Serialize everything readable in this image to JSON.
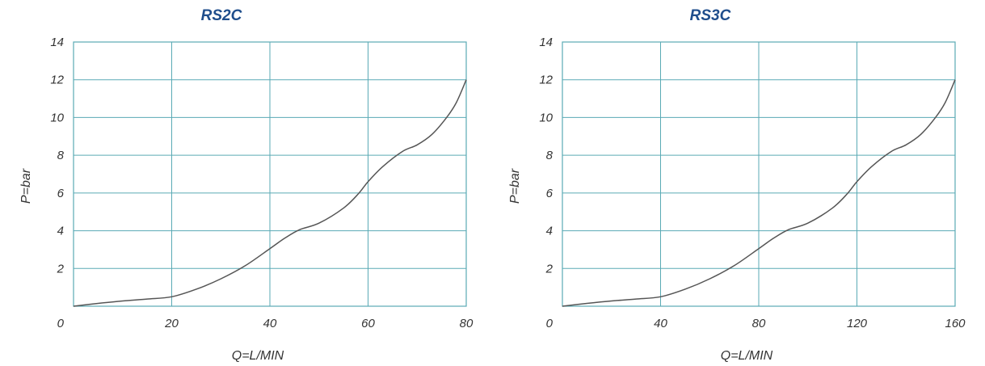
{
  "chart_data": [
    {
      "type": "line",
      "title": "RS2C",
      "xlabel": "Q=L/MIN",
      "ylabel": "P=bar",
      "xlim": [
        0,
        80
      ],
      "ylim": [
        0,
        14
      ],
      "xticks": [
        "0",
        "20",
        "40",
        "60",
        "80"
      ],
      "yticks": [
        "2",
        "4",
        "6",
        "8",
        "10",
        "12",
        "14"
      ],
      "grid": true,
      "series": [
        {
          "x": [
            0,
            5,
            10,
            15,
            20,
            25,
            30,
            35,
            40,
            43,
            46,
            50,
            55,
            58,
            60,
            63,
            67,
            70,
            73,
            76,
            78,
            80
          ],
          "values": [
            0,
            0.15,
            0.28,
            0.38,
            0.5,
            0.9,
            1.45,
            2.15,
            3.05,
            3.6,
            4.05,
            4.4,
            5.2,
            5.95,
            6.6,
            7.4,
            8.2,
            8.55,
            9.1,
            10.0,
            10.8,
            12.0
          ]
        }
      ]
    },
    {
      "type": "line",
      "title": "RS3C",
      "xlabel": "Q=L/MIN",
      "ylabel": "P=bar",
      "xlim": [
        0,
        160
      ],
      "ylim": [
        0,
        14
      ],
      "xticks": [
        "0",
        "40",
        "80",
        "120",
        "160"
      ],
      "yticks": [
        "2",
        "4",
        "6",
        "8",
        "10",
        "12",
        "14"
      ],
      "grid": true,
      "series": [
        {
          "x": [
            0,
            10,
            20,
            30,
            40,
            50,
            60,
            70,
            80,
            86,
            92,
            100,
            110,
            116,
            120,
            126,
            134,
            140,
            146,
            152,
            156,
            160
          ],
          "values": [
            0,
            0.15,
            0.28,
            0.38,
            0.5,
            0.9,
            1.45,
            2.15,
            3.05,
            3.6,
            4.05,
            4.4,
            5.2,
            5.95,
            6.6,
            7.4,
            8.2,
            8.55,
            9.1,
            10.0,
            10.8,
            12.0
          ]
        }
      ]
    }
  ],
  "colors": {
    "title": "#1f4e8c",
    "grid": "#5aaab5",
    "curve": "#555555",
    "text": "#333333"
  }
}
